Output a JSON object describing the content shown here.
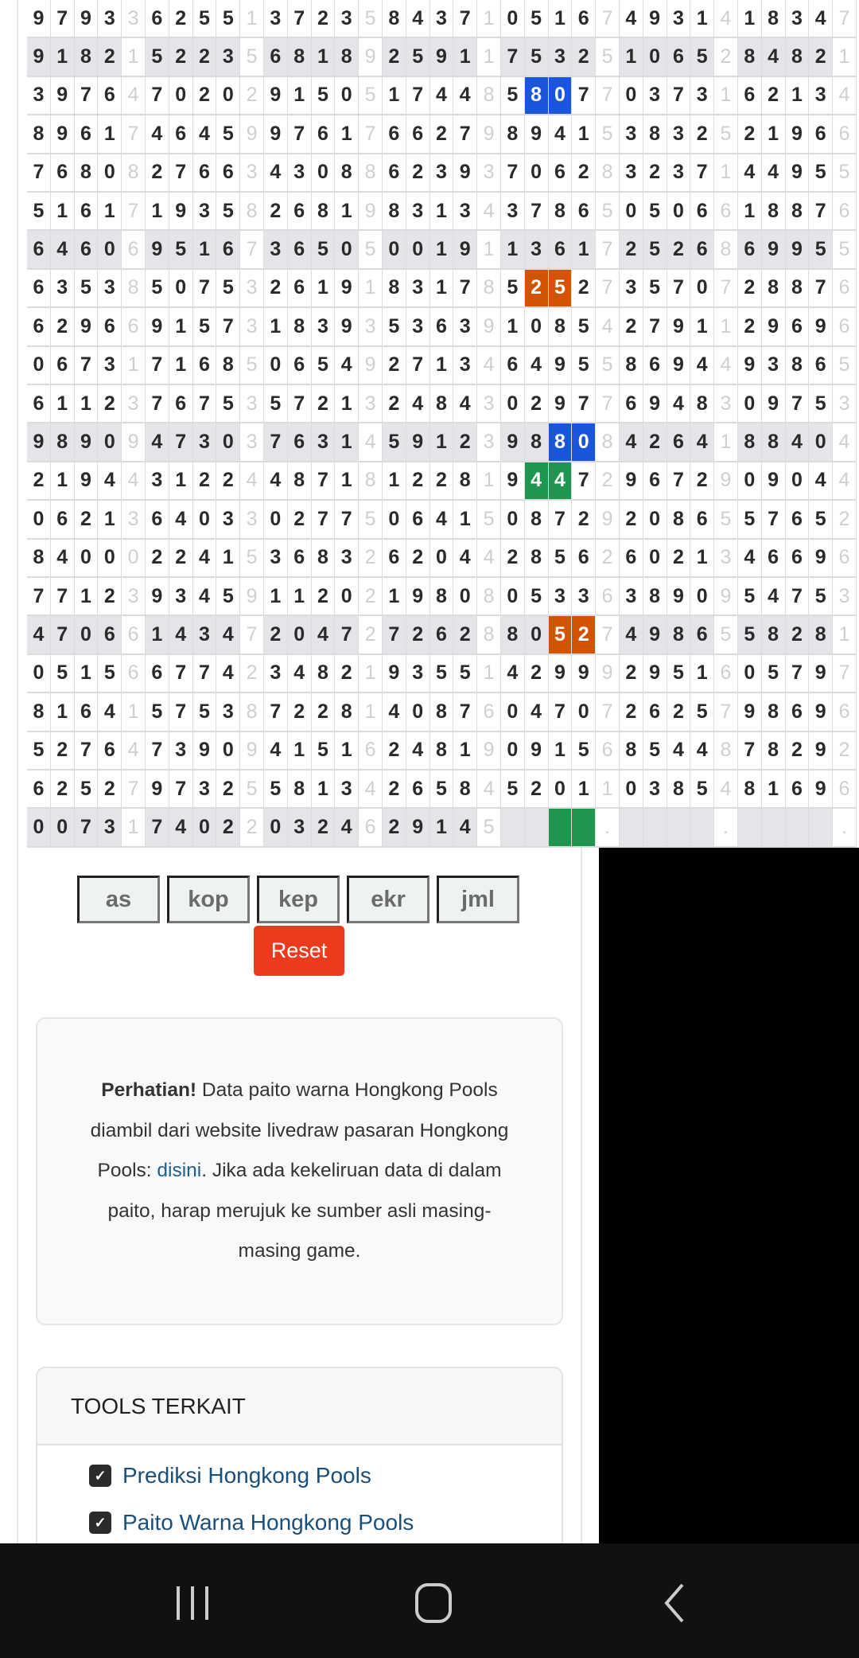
{
  "paito": {
    "rows": [
      "9793 3 6255 1 3723 5 8437 1 0516 7 4931 4 1834 7",
      "9182 1 5223 5 6818 9 2591 1 7532 5 1065 2 8482 1",
      "3976 4 7020 2 9150 5 1744 8 5807 7 0373 1 6213 4",
      "8961 7 4645 9 9761 7 6627 9 8941 5 3832 5 2196 6",
      "7680 8 2766 3 4308 8 6239 3 7062 8 3237 1 4495 5",
      "5161 7 1935 8 2681 9 8313 4 3786 5 0506 6 1887 6",
      "6460 6 9516 7 3650 5 0019 1 1361 7 2526 8 6995 5",
      "6353 8 5075 3 2619 1 8317 8 5252 7 3570 7 2887 6",
      "6296 6 9157 3 1839 3 5363 9 1085 4 2791 1 2969 6",
      "0673 1 7168 5 0654 9 2713 4 6495 5 8694 4 9386 5",
      "6112 3 7675 3 5721 3 2484 3 0297 7 6948 3 0975 3",
      "9890 9 4730 3 7631 4 5912 3 9880 8 4264 1 8840 4",
      "2194 4 3122 4 4871 8 1228 1 9447 2 9672 9 0904 4",
      "0621 3 6403 3 0277 5 0641 5 0872 9 2086 5 5765 2",
      "8400 0 2241 5 3683 2 6204 4 2856 2 6021 3 4669 6",
      "7712 3 9345 9 1120 2 1980 8 0533 6 3890 9 5475 3",
      "4706 6 1434 7 2047 2 7262 8 8052 7 4986 5 5828 1",
      "0515 6 6774 2 3482 1 9355 1 4299 9 2951 6 0579 7",
      "8164 1 5753 8 7228 1 4087 6 0470 7 2625 7 9869 6",
      "5276 4 7390 9 4151 6 2481 9 0915 6 8544 8 7829 2",
      "6252 7 9732 5 5813 4 2658 4 5201 1 0385 4 8169 6",
      "0073 1 7402 2 0324 6 2914 5 ____ . ____ . ____ ."
    ],
    "shaded_rows": [
      1,
      6,
      11,
      16,
      21
    ],
    "highlights": [
      {
        "row": 2,
        "cols": [
          21,
          22
        ],
        "color": "#1a56db"
      },
      {
        "row": 7,
        "cols": [
          21,
          22
        ],
        "color": "#d35400"
      },
      {
        "row": 11,
        "cols": [
          22,
          23
        ],
        "color": "#1a56db"
      },
      {
        "row": 12,
        "cols": [
          21,
          22
        ],
        "color": "#1e9650"
      },
      {
        "row": 16,
        "cols": [
          22,
          23
        ],
        "color": "#d35400"
      },
      {
        "row": 21,
        "cols": [
          22,
          23
        ],
        "color": "#1e9650"
      }
    ]
  },
  "controls": {
    "buttons": [
      "as",
      "kop",
      "kep",
      "ekr",
      "jml"
    ],
    "reset_label": "Reset",
    "reset_color": "#ee3a1c"
  },
  "notice": {
    "bold": "Perhatian!",
    "text1": " Data paito warna Hongkong Pools diambil dari website livedraw pasaran Hongkong Pools: ",
    "link": "disini",
    "text2": ". Jika ada kekeliruan data di dalam paito, harap merujuk ke sumber asli masing-masing game."
  },
  "tools": {
    "title": "TOOLS TERKAIT",
    "items": [
      "Prediksi Hongkong Pools",
      "Paito Warna Hongkong Pools"
    ],
    "link_color": "#1a4f7a"
  },
  "navbar": {
    "icons": [
      "recent-apps-icon",
      "home-icon",
      "back-icon"
    ]
  }
}
